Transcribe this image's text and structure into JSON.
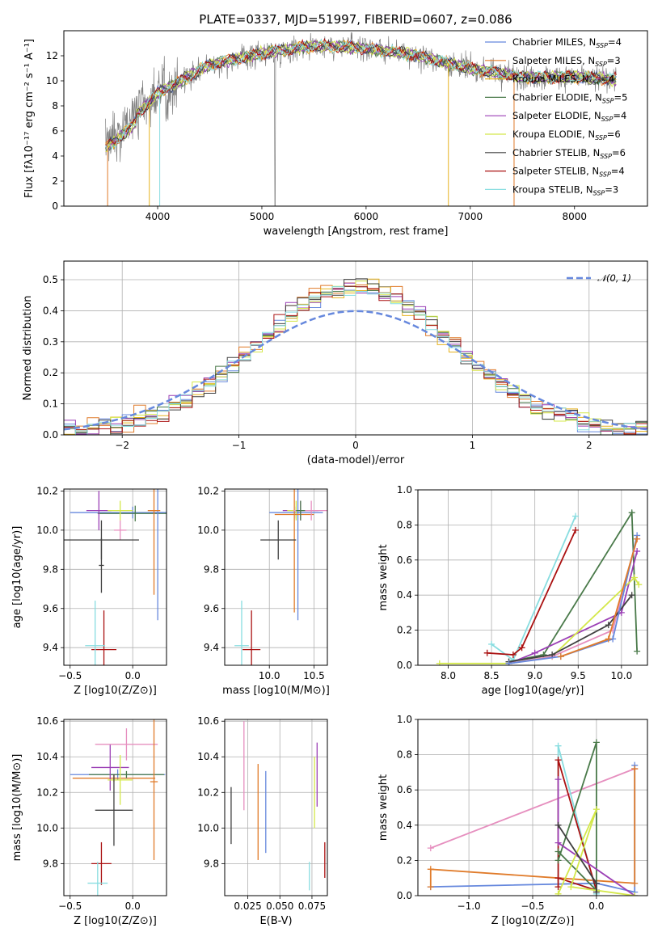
{
  "chart_data": [
    {
      "type": "line",
      "title": "PLATE=0337, MJD=51997, FIBERID=0607, z=0.086",
      "xlabel": "wavelength [Angstrom, rest frame]",
      "ylabel": "Flux [fλ10⁻¹⁷ erg cm⁻² s⁻¹ A⁻¹]",
      "xlim": [
        3100,
        8700
      ],
      "ylim": [
        0,
        14
      ],
      "xticks": [
        4000,
        5000,
        6000,
        7000,
        8000
      ],
      "yticks": [
        0,
        2,
        4,
        6,
        8,
        10,
        12
      ],
      "grid": false,
      "legend_position": "upper right",
      "series": [
        {
          "name": "Chabrier MILES, N_SSP=4",
          "label_text": "Chabrier MILES, N",
          "sub": "SSP",
          "suffix": "=4",
          "color": "#6688dd"
        },
        {
          "name": "Salpeter MILES, N_SSP=3",
          "label_text": "Salpeter MILES, N",
          "sub": "SSP",
          "suffix": "=3",
          "color": "#e07b2a"
        },
        {
          "name": "Kroupa MILES, N_SSP=4",
          "label_text": "Kroupa MILES, N",
          "sub": "SSP",
          "suffix": "=4",
          "color": "#e6b21f"
        },
        {
          "name": "Chabrier ELODIE, N_SSP=5",
          "label_text": "Chabrier ELODIE, N",
          "sub": "SSP",
          "suffix": "=5",
          "color": "#4a7a4a"
        },
        {
          "name": "Salpeter ELODIE, N_SSP=4",
          "label_text": "Salpeter ELODIE, N",
          "sub": "SSP",
          "suffix": "=4",
          "color": "#9b3fb5"
        },
        {
          "name": "Kroupa ELODIE, N_SSP=6",
          "label_text": "Kroupa ELODIE, N",
          "sub": "SSP",
          "suffix": "=6",
          "color": "#d4e84a"
        },
        {
          "name": "Chabrier STELIB, N_SSP=6",
          "label_text": "Chabrier STELIB, N",
          "sub": "SSP",
          "suffix": "=6",
          "color": "#404040"
        },
        {
          "name": "Salpeter STELIB, N_SSP=4",
          "label_text": "Salpeter STELIB, N",
          "sub": "SSP",
          "suffix": "=4",
          "color": "#aa1111"
        },
        {
          "name": "Kroupa STELIB, N_SSP=3",
          "label_text": "Kroupa STELIB, N",
          "sub": "SSP",
          "suffix": "=3",
          "color": "#88dde0"
        }
      ],
      "data_spectrum_color": "#808080",
      "continuum": {
        "x": [
          3500,
          3700,
          4000,
          4500,
          5000,
          5500,
          6000,
          6500,
          7000,
          7500,
          8000,
          8400
        ],
        "y": [
          5.2,
          6.5,
          9.0,
          11.3,
          12.2,
          12.8,
          12.6,
          12.0,
          11.0,
          10.3,
          10.3,
          10.1
        ]
      }
    },
    {
      "type": "step",
      "xlabel": "(data-model)/error",
      "ylabel": "Normed distribution",
      "xlim": [
        -2.5,
        2.5
      ],
      "ylim": [
        0,
        0.56
      ],
      "xticks": [
        -2,
        -1,
        0,
        1,
        2
      ],
      "yticks": [
        0.0,
        0.1,
        0.2,
        0.3,
        0.4,
        0.5
      ],
      "grid": true,
      "legend": "𝒩(0, 1)",
      "gaussian_color": "#6688dd",
      "bin_width": 0.1,
      "bin_start": -2.5
    },
    {
      "type": "errorbar",
      "xlabel": "Z [log10(Z/Z⊙)]",
      "ylabel": "age  [log10(age/yr)]",
      "xlim": [
        -0.55,
        0.27
      ],
      "ylim": [
        9.31,
        10.21
      ],
      "xticks": [
        -0.5,
        0.0
      ],
      "yticks": [
        9.4,
        9.6,
        9.8,
        10.0,
        10.2
      ],
      "grid": true,
      "points": [
        {
          "x": 0.0,
          "y": 10.09,
          "xerr": 0.5,
          "yerr": 0.03,
          "color": "#6688dd"
        },
        {
          "x": 0.02,
          "y": 10.085,
          "xerr": 0.3,
          "yerr": 0.04,
          "color": "#4a7a4a"
        },
        {
          "x": 0.2,
          "y": 10.09,
          "xerr": 0.05,
          "yerr": 0.55,
          "color": "#6688dd"
        },
        {
          "x": -0.27,
          "y": 10.1,
          "xerr": 0.1,
          "yerr": 0.1,
          "color": "#9b3fb5"
        },
        {
          "x": -0.1,
          "y": 10.1,
          "xerr": 0.1,
          "yerr": 0.05,
          "color": "#d4e84a"
        },
        {
          "x": 0.17,
          "y": 10.1,
          "xerr": 0.05,
          "yerr": 0.43,
          "color": "#e07b2a"
        },
        {
          "x": -0.1,
          "y": 10.0,
          "xerr": 0.05,
          "yerr": 0.05,
          "color": "#e68fbf"
        },
        {
          "x": -0.25,
          "y": 9.95,
          "xerr": 0.3,
          "yerr": 0.1,
          "color": "#404040"
        },
        {
          "x": -0.25,
          "y": 9.82,
          "xerr": 0.02,
          "yerr": 0.14,
          "color": "#404040"
        },
        {
          "x": -0.23,
          "y": 9.39,
          "xerr": 0.1,
          "yerr": 0.2,
          "color": "#aa1111"
        },
        {
          "x": -0.3,
          "y": 9.41,
          "xerr": 0.08,
          "yerr": 0.23,
          "color": "#88dde0"
        }
      ]
    },
    {
      "type": "errorbar",
      "xlabel": "mass [log10(M/M⊙)]",
      "ylabel": "",
      "xlim": [
        9.5,
        10.65
      ],
      "ylim": [
        9.31,
        10.21
      ],
      "xticks": [
        10.0,
        10.5
      ],
      "yticks": [
        9.4,
        9.6,
        9.8,
        10.0,
        10.2
      ],
      "grid": true,
      "points": [
        {
          "x": 10.3,
          "y": 10.09,
          "xerr": 0.3,
          "yerr": 0.03,
          "color": "#6688dd"
        },
        {
          "x": 10.32,
          "y": 10.09,
          "xerr": 0.02,
          "yerr": 0.55,
          "color": "#6688dd"
        },
        {
          "x": 10.35,
          "y": 10.1,
          "xerr": 0.2,
          "yerr": 0.05,
          "color": "#9b3fb5"
        },
        {
          "x": 10.3,
          "y": 10.1,
          "xerr": 0.1,
          "yerr": 0.05,
          "color": "#d4e84a"
        },
        {
          "x": 10.28,
          "y": 10.08,
          "xerr": 0.22,
          "yerr": 0.5,
          "color": "#e07b2a"
        },
        {
          "x": 10.47,
          "y": 10.1,
          "xerr": 0.2,
          "yerr": 0.05,
          "color": "#e68fbf"
        },
        {
          "x": 10.35,
          "y": 10.1,
          "xerr": 0.05,
          "yerr": 0.05,
          "color": "#4a7a4a"
        },
        {
          "x": 10.1,
          "y": 9.95,
          "xerr": 0.2,
          "yerr": 0.1,
          "color": "#404040"
        },
        {
          "x": 9.8,
          "y": 9.39,
          "xerr": 0.1,
          "yerr": 0.2,
          "color": "#aa1111"
        },
        {
          "x": 9.69,
          "y": 9.41,
          "xerr": 0.08,
          "yerr": 0.23,
          "color": "#88dde0"
        }
      ]
    },
    {
      "type": "line",
      "xlabel": "age  [log10(age/yr)]",
      "ylabel": "mass weight",
      "xlim": [
        7.65,
        10.3
      ],
      "ylim": [
        0,
        1.0
      ],
      "xticks": [
        8.0,
        8.5,
        9.0,
        9.5,
        10.0
      ],
      "yticks": [
        0.0,
        0.2,
        0.4,
        0.6,
        0.8,
        1.0
      ],
      "grid": true,
      "series": [
        {
          "color": "#88dde0",
          "x": [
            8.5,
            8.75,
            9.47
          ],
          "y": [
            0.12,
            0.03,
            0.85
          ]
        },
        {
          "color": "#aa1111",
          "x": [
            8.45,
            8.75,
            8.85,
            9.47
          ],
          "y": [
            0.07,
            0.06,
            0.1,
            0.77
          ]
        },
        {
          "color": "#4a7a4a",
          "x": [
            8.7,
            9.1,
            10.12,
            10.18
          ],
          "y": [
            0.02,
            0.06,
            0.87,
            0.08
          ]
        },
        {
          "color": "#9b3fb5",
          "x": [
            8.7,
            9.0,
            10.0,
            10.18
          ],
          "y": [
            0.01,
            0.07,
            0.3,
            0.65
          ]
        },
        {
          "color": "#d4e84a",
          "x": [
            7.9,
            8.7,
            9.2,
            10.15,
            10.2
          ],
          "y": [
            0.01,
            0.01,
            0.05,
            0.5,
            0.46
          ]
        },
        {
          "color": "#e68fbf",
          "x": [
            8.7,
            9.2,
            9.9,
            10.18
          ],
          "y": [
            0.01,
            0.05,
            0.2,
            0.72
          ]
        },
        {
          "color": "#404040",
          "x": [
            8.7,
            9.2,
            9.85,
            10.12
          ],
          "y": [
            0.02,
            0.06,
            0.23,
            0.4
          ]
        },
        {
          "color": "#6688dd",
          "x": [
            8.7,
            9.3,
            9.9,
            10.18
          ],
          "y": [
            0.01,
            0.05,
            0.15,
            0.74
          ]
        },
        {
          "color": "#e07b2a",
          "x": [
            9.3,
            9.85,
            10.18
          ],
          "y": [
            0.05,
            0.15,
            0.72
          ]
        }
      ]
    },
    {
      "type": "errorbar",
      "xlabel": "Z [log10(Z/Z⊙)]",
      "ylabel": "mass [log10(M/M⊙)]",
      "xlim": [
        -0.55,
        0.27
      ],
      "ylim": [
        9.62,
        10.61
      ],
      "xticks": [
        -0.5,
        0.0
      ],
      "yticks": [
        9.8,
        10.0,
        10.2,
        10.4,
        10.6
      ],
      "grid": true,
      "points": [
        {
          "x": -0.12,
          "y": 10.3,
          "xerr": 0.38,
          "yerr": 0.03,
          "color": "#6688dd"
        },
        {
          "x": -0.15,
          "y": 10.28,
          "xerr": 0.33,
          "yerr": 0.02,
          "color": "#e07b2a"
        },
        {
          "x": -0.05,
          "y": 10.3,
          "xerr": 0.3,
          "yerr": 0.02,
          "color": "#4a7a4a"
        },
        {
          "x": -0.18,
          "y": 10.34,
          "xerr": 0.15,
          "yerr": 0.13,
          "color": "#9b3fb5"
        },
        {
          "x": -0.1,
          "y": 10.27,
          "xerr": 0.1,
          "yerr": 0.14,
          "color": "#d4e84a"
        },
        {
          "x": -0.05,
          "y": 10.47,
          "xerr": 0.25,
          "yerr": 0.09,
          "color": "#e68fbf"
        },
        {
          "x": 0.17,
          "y": 10.26,
          "xerr": 0.03,
          "yerr": 0.44,
          "color": "#e07b2a"
        },
        {
          "x": -0.15,
          "y": 10.1,
          "xerr": 0.15,
          "yerr": 0.2,
          "color": "#404040"
        },
        {
          "x": -0.25,
          "y": 9.8,
          "xerr": 0.08,
          "yerr": 0.12,
          "color": "#aa1111"
        },
        {
          "x": -0.28,
          "y": 9.69,
          "xerr": 0.08,
          "yerr": 0.12,
          "color": "#88dde0"
        }
      ]
    },
    {
      "type": "errorbar",
      "xlabel": "E(B-V)",
      "ylabel": "",
      "xlim": [
        0.007,
        0.087
      ],
      "ylim": [
        9.62,
        10.61
      ],
      "xticks": [
        0.025,
        0.05,
        0.075
      ],
      "xtick_labels": [
        "0.025",
        "0.050",
        "0.075"
      ],
      "yticks": [
        9.8,
        10.0,
        10.2,
        10.4,
        10.6
      ],
      "grid": true,
      "points": [
        {
          "x": 0.012,
          "y": 10.07,
          "yerr": 0.16,
          "color": "#404040"
        },
        {
          "x": 0.022,
          "y": 10.35,
          "yerr": 0.25,
          "color": "#e68fbf"
        },
        {
          "x": 0.033,
          "y": 10.09,
          "yerr": 0.27,
          "color": "#e07b2a"
        },
        {
          "x": 0.039,
          "y": 10.09,
          "yerr": 0.23,
          "color": "#6688dd"
        },
        {
          "x": 0.073,
          "y": 9.73,
          "yerr": 0.08,
          "color": "#88dde0"
        },
        {
          "x": 0.077,
          "y": 10.2,
          "yerr": 0.2,
          "color": "#d4e84a"
        },
        {
          "x": 0.079,
          "y": 10.3,
          "yerr": 0.18,
          "color": "#9b3fb5"
        },
        {
          "x": 0.085,
          "y": 9.82,
          "yerr": 0.1,
          "color": "#aa1111"
        }
      ]
    },
    {
      "type": "line",
      "xlabel": "Z [log10(Z/Z⊙)]",
      "ylabel": "mass weight",
      "xlim": [
        -1.4,
        0.4
      ],
      "ylim": [
        0,
        1.0
      ],
      "xticks": [
        -1.0,
        -0.5,
        0.0
      ],
      "yticks": [
        0.0,
        0.2,
        0.4,
        0.6,
        0.8,
        1.0
      ],
      "grid": true,
      "series": [
        {
          "color": "#e68fbf",
          "x": [
            -1.3,
            0.3
          ],
          "y": [
            0.27,
            0.72
          ]
        },
        {
          "color": "#6688dd",
          "x": [
            -1.3,
            0.0,
            0.3,
            0.3
          ],
          "y": [
            0.05,
            0.07,
            0.02,
            0.74
          ]
        },
        {
          "color": "#e07b2a",
          "x": [
            -1.3,
            -1.3,
            -0.3,
            0.3,
            0.3
          ],
          "y": [
            0.05,
            0.15,
            0.1,
            0.07,
            0.72
          ]
        },
        {
          "color": "#88dde0",
          "x": [
            -0.3,
            -0.3,
            0.0
          ],
          "y": [
            0.05,
            0.85,
            0.01
          ]
        },
        {
          "color": "#aa1111",
          "x": [
            -0.3,
            -0.3,
            0.0,
            -0.3
          ],
          "y": [
            0.05,
            0.77,
            0.03,
            0.1
          ]
        },
        {
          "color": "#4a7a4a",
          "x": [
            -0.3,
            0.0,
            0.0,
            -0.3
          ],
          "y": [
            0.2,
            0.87,
            0.03,
            0.25
          ]
        },
        {
          "color": "#9b3fb5",
          "x": [
            -0.3,
            -0.3,
            0.3
          ],
          "y": [
            0.66,
            0.3,
            0.0
          ]
        },
        {
          "color": "#d4e84a",
          "x": [
            -0.3,
            0.0,
            -0.2,
            0.3
          ],
          "y": [
            0.01,
            0.49,
            0.05,
            0.0
          ]
        },
        {
          "color": "#404040",
          "x": [
            -0.3,
            0.0,
            0.0
          ],
          "y": [
            0.4,
            0.07,
            0.02
          ]
        }
      ]
    }
  ]
}
